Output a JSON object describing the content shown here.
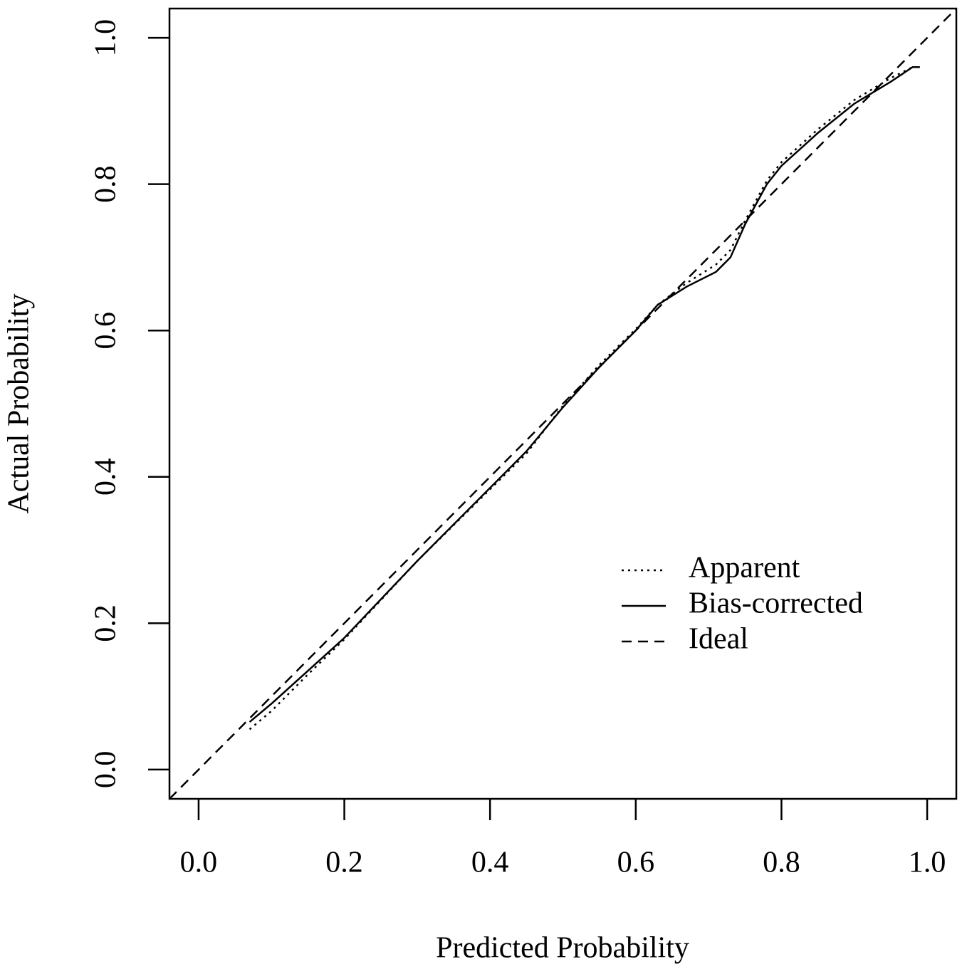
{
  "chart_data": {
    "type": "line",
    "xlabel": "Predicted Probability",
    "ylabel": "Actual Probability",
    "xlim": [
      -0.04,
      1.04
    ],
    "ylim": [
      -0.04,
      1.04
    ],
    "xticks": [
      {
        "value": 0,
        "label": "0.0"
      },
      0.2,
      0.4,
      0.6,
      0.8,
      {
        "value": 1,
        "label": "1.0"
      }
    ],
    "yticks": [
      {
        "value": 0,
        "label": "0.0"
      },
      0.2,
      0.4,
      0.6,
      0.8,
      {
        "value": 1,
        "label": "1.0"
      }
    ],
    "legend": "bottom-right",
    "series": [
      {
        "name": "Apparent",
        "color": "#000000",
        "dash": "dotted",
        "x": [
          0.07,
          0.1,
          0.15,
          0.2,
          0.3,
          0.4,
          0.45,
          0.5,
          0.55,
          0.6,
          0.63,
          0.67,
          0.71,
          0.73,
          0.75,
          0.78,
          0.8,
          0.85,
          0.9,
          0.95,
          0.98
        ],
        "values": [
          0.055,
          0.08,
          0.13,
          0.178,
          0.285,
          0.383,
          0.432,
          0.497,
          0.553,
          0.602,
          0.635,
          0.665,
          0.69,
          0.71,
          0.75,
          0.805,
          0.83,
          0.875,
          0.915,
          0.945,
          0.96
        ]
      },
      {
        "name": "Bias-corrected",
        "color": "#000000",
        "dash": "solid",
        "x": [
          0.07,
          0.1,
          0.15,
          0.2,
          0.3,
          0.4,
          0.45,
          0.5,
          0.55,
          0.6,
          0.63,
          0.67,
          0.71,
          0.73,
          0.75,
          0.78,
          0.8,
          0.85,
          0.9,
          0.95,
          0.98,
          0.99
        ],
        "values": [
          0.065,
          0.09,
          0.135,
          0.18,
          0.285,
          0.385,
          0.435,
          0.495,
          0.55,
          0.6,
          0.635,
          0.66,
          0.68,
          0.7,
          0.745,
          0.8,
          0.825,
          0.87,
          0.91,
          0.94,
          0.96,
          0.96
        ]
      },
      {
        "name": "Ideal",
        "color": "#000000",
        "dash": "dashed",
        "x": [
          -0.04,
          1.04
        ],
        "values": [
          -0.04,
          1.04
        ]
      }
    ]
  }
}
